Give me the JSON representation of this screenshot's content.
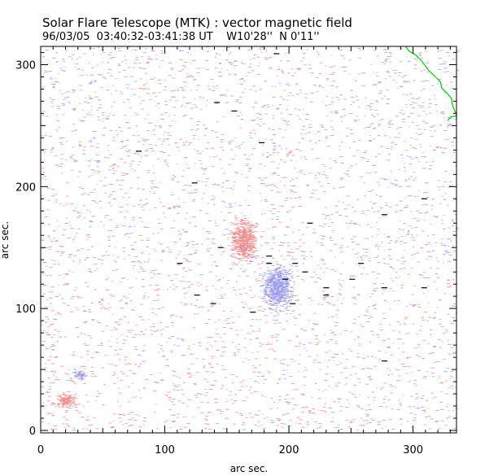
{
  "chart_data": {
    "type": "scatter",
    "title": "Solar Flare Telescope (MTK) : vector magnetic field",
    "subtitle": "96/03/05  03:40:32-03:41:38 UT    W10'28''  N 0'11''",
    "xlabel": "arc sec.",
    "ylabel": "arc sec.",
    "xlim": [
      0,
      335
    ],
    "ylim": [
      -2,
      315
    ],
    "xticks": [
      0,
      100,
      200,
      300
    ],
    "yticks": [
      0,
      100,
      200,
      300
    ],
    "grid": false,
    "colors": {
      "positive_field": "#f07878",
      "negative_field": "#8c8cf0",
      "transverse_vectors": "#000000",
      "limb_contour": "#00cc00"
    },
    "concentrations": [
      {
        "polarity": "positive",
        "x": 163,
        "y": 156,
        "spread_x": 9,
        "spread_y": 15
      },
      {
        "polarity": "negative",
        "x": 190,
        "y": 118,
        "spread_x": 10,
        "spread_y": 16
      },
      {
        "polarity": "negative",
        "x": 31,
        "y": 46,
        "spread_x": 5,
        "spread_y": 3
      },
      {
        "polarity": "positive",
        "x": 20,
        "y": 25,
        "spread_x": 7,
        "spread_y": 5
      }
    ],
    "transverse_vectors": [
      [
        190,
        309
      ],
      [
        142,
        269
      ],
      [
        156,
        262
      ],
      [
        178,
        236
      ],
      [
        79,
        229
      ],
      [
        124,
        203
      ],
      [
        309,
        190
      ],
      [
        277,
        177
      ],
      [
        217,
        170
      ],
      [
        145,
        150
      ],
      [
        184,
        143
      ],
      [
        205,
        137
      ],
      [
        112,
        137
      ],
      [
        184,
        137
      ],
      [
        258,
        137
      ],
      [
        213,
        130
      ],
      [
        197,
        124
      ],
      [
        251,
        124
      ],
      [
        230,
        117
      ],
      [
        277,
        117
      ],
      [
        309,
        117
      ],
      [
        126,
        111
      ],
      [
        230,
        111
      ],
      [
        139,
        104
      ],
      [
        203,
        104
      ],
      [
        171,
        97
      ],
      [
        277,
        57
      ]
    ],
    "limb_contour": [
      [
        294,
        315
      ],
      [
        297,
        311
      ],
      [
        302,
        308
      ],
      [
        307,
        303
      ],
      [
        312,
        296
      ],
      [
        318,
        290
      ],
      [
        322,
        286
      ],
      [
        323,
        281
      ],
      [
        328,
        276
      ],
      [
        331,
        272
      ],
      [
        332,
        266
      ],
      [
        335,
        259
      ],
      [
        335,
        258
      ],
      [
        330,
        257
      ],
      [
        328,
        254
      ]
    ]
  }
}
